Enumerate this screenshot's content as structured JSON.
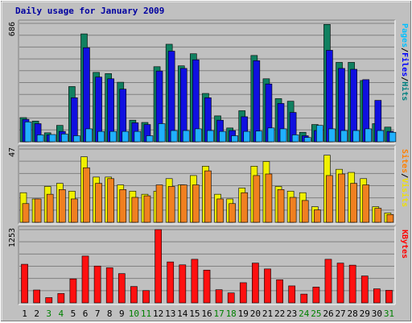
{
  "chart_data": {
    "type": "bar",
    "title": "Daily usage for January 2009",
    "x": [
      "1",
      "2",
      "3",
      "4",
      "5",
      "6",
      "7",
      "8",
      "9",
      "10",
      "11",
      "12",
      "13",
      "14",
      "15",
      "16",
      "17",
      "18",
      "19",
      "20",
      "21",
      "22",
      "23",
      "24",
      "25",
      "26",
      "27",
      "28",
      "29",
      "30",
      "31"
    ],
    "weekend_days": [
      "3",
      "4",
      "10",
      "11",
      "17",
      "18",
      "24",
      "25",
      "31"
    ],
    "panels": [
      {
        "id": "hits",
        "ymax": 686,
        "ymax_label": "686",
        "legend": [
          "Pages",
          "/",
          "Files",
          "/",
          "Hits"
        ],
        "legend_colors": [
          "#00c0ff",
          "#000000",
          "#0000ff",
          "#000000",
          "#008080"
        ],
        "series": [
          {
            "name": "Hits",
            "color": "#108060",
            "values": [
              140,
              120,
              52,
              95,
              320,
              625,
              402,
              395,
              345,
              125,
              112,
              435,
              565,
              440,
              510,
              280,
              150,
              80,
              180,
              500,
              365,
              250,
              235,
              55,
              100,
              680,
              460,
              460,
              355,
              105,
              85
            ]
          },
          {
            "name": "Files",
            "color": "#1010e0",
            "values": [
              130,
              105,
              40,
              60,
              255,
              545,
              375,
              365,
              305,
              110,
              100,
              410,
              525,
              425,
              475,
              255,
              125,
              65,
              145,
              470,
              335,
              222,
              170,
              35,
              65,
              530,
              425,
              420,
              360,
              240,
              60
            ]
          },
          {
            "name": "Pages",
            "color": "#20b0ff",
            "values": [
              115,
              40,
              42,
              45,
              35,
              75,
              60,
              60,
              60,
              60,
              35,
              105,
              65,
              65,
              75,
              65,
              60,
              35,
              60,
              62,
              80,
              75,
              40,
              25,
              95,
              75,
              65,
              65,
              75,
              65,
              55
            ]
          }
        ]
      },
      {
        "id": "visits",
        "ymax": 47,
        "ymax_label": "47",
        "legend": [
          "Sites",
          "/",
          "Visits"
        ],
        "legend_colors": [
          "#ff8000",
          "#000000",
          "#f0e000"
        ],
        "series": [
          {
            "name": "Visits",
            "color": "#f0f000",
            "values": [
              19,
              15,
              23,
              25,
              20,
              42,
              29,
              29,
              24,
              20,
              18,
              20,
              28,
              24,
              30,
              36,
              18,
              15,
              22,
              36,
              39,
              23,
              20,
              19,
              10,
              43,
              34,
              32,
              28,
              10,
              6
            ]
          },
          {
            "name": "Sites",
            "color": "#f08020",
            "values": [
              12,
              15,
              18,
              21,
              15,
              35,
              25,
              28,
              21,
              16,
              17,
              24,
              23,
              24,
              24,
              33,
              15,
              12,
              19,
              30,
              31,
              21,
              16,
              14,
              8,
              30,
              31,
              25,
              24,
              9,
              5
            ]
          }
        ]
      },
      {
        "id": "kbytes",
        "ymax": 1253,
        "ymax_label": "1253",
        "legend": [
          "KBytes"
        ],
        "legend_colors": [
          "#ff0000"
        ],
        "series": [
          {
            "name": "KBytes",
            "color": "#ff1010",
            "values": [
              660,
              220,
              90,
              160,
              410,
              800,
              630,
              600,
              500,
              280,
              210,
              1253,
              700,
              650,
              745,
              560,
              225,
              170,
              345,
              680,
              580,
              395,
              290,
              150,
              270,
              745,
              680,
              645,
              460,
              240,
              215
            ]
          }
        ]
      }
    ],
    "grid": true
  }
}
